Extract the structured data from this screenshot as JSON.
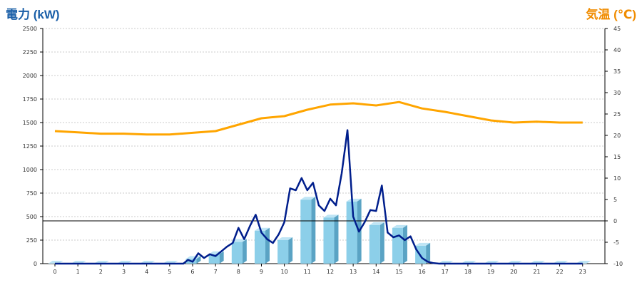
{
  "chart_data": {
    "type": "bar+line",
    "title": "",
    "ylabel_left": "電力 (kW)",
    "ylabel_right": "気温 (℃)",
    "colors": {
      "left_title": "#1a5fa8",
      "right_title": "#f08c00",
      "bar": "#8ccfe9",
      "bar_side": "#5aa3c4",
      "bar_top": "#bfe5f5",
      "power_line": "#001e8c",
      "temp_line": "#ffa500",
      "grid": "#bbbbbb",
      "zero_line": "#000000"
    },
    "x_ticks": [
      "0",
      "1",
      "2",
      "3",
      "4",
      "5",
      "6",
      "7",
      "8",
      "9",
      "10",
      "11",
      "12",
      "13",
      "14",
      "15",
      "16",
      "17",
      "18",
      "19",
      "20",
      "21",
      "22",
      "23"
    ],
    "ylim_left": [
      0,
      2500
    ],
    "y_ticks_left": [
      "0",
      "250",
      "500",
      "750",
      "1000",
      "1250",
      "1500",
      "1750",
      "2000",
      "2250",
      "2500"
    ],
    "ylim_right": [
      -10,
      45
    ],
    "y_ticks_right": [
      "-10",
      "-5",
      "0",
      "5",
      "10",
      "15",
      "20",
      "25",
      "30",
      "35",
      "40",
      "45"
    ],
    "reference_line_right": 0,
    "grid": true,
    "bars": {
      "name": "",
      "categories": [
        0,
        1,
        2,
        3,
        4,
        5,
        6,
        7,
        8,
        9,
        10,
        11,
        12,
        13,
        14,
        15,
        16,
        17,
        18,
        19,
        20,
        21,
        22,
        23
      ],
      "values": [
        0,
        0,
        0,
        0,
        0,
        0,
        50,
        100,
        230,
        350,
        250,
        680,
        490,
        660,
        410,
        380,
        190,
        0,
        0,
        0,
        0,
        0,
        0,
        0
      ]
    },
    "power_line": {
      "name": "",
      "x": [
        0,
        1,
        2,
        3,
        4,
        5,
        5.6,
        5.8,
        6,
        6.25,
        6.5,
        6.75,
        7,
        7.25,
        7.5,
        7.75,
        8,
        8.25,
        8.5,
        8.75,
        9,
        9.25,
        9.5,
        9.75,
        10,
        10.25,
        10.5,
        10.75,
        11,
        11.25,
        11.5,
        11.75,
        12,
        12.25,
        12.5,
        12.75,
        13,
        13.25,
        13.5,
        13.75,
        14,
        14.25,
        14.5,
        14.75,
        15,
        15.25,
        15.5,
        15.75,
        16,
        16.25,
        16.5,
        16.75,
        17,
        18,
        19,
        20,
        21,
        22,
        23
      ],
      "y": [
        0,
        0,
        0,
        0,
        0,
        0,
        0,
        40,
        20,
        110,
        60,
        100,
        80,
        130,
        180,
        220,
        380,
        260,
        400,
        520,
        330,
        260,
        220,
        310,
        440,
        800,
        780,
        910,
        780,
        860,
        620,
        560,
        690,
        620,
        960,
        1420,
        500,
        340,
        440,
        570,
        560,
        830,
        330,
        280,
        300,
        250,
        290,
        150,
        60,
        20,
        5,
        0,
        0,
        0,
        0,
        0,
        0,
        0,
        0
      ]
    },
    "temperature_line": {
      "name": "",
      "x": [
        0,
        1,
        2,
        3,
        4,
        5,
        6,
        7,
        8,
        9,
        10,
        11,
        12,
        13,
        14,
        15,
        16,
        17,
        18,
        19,
        20,
        21,
        22,
        23
      ],
      "y": [
        21,
        20.7,
        20.4,
        20.4,
        20.2,
        20.2,
        20.6,
        21,
        22.5,
        24,
        24.5,
        26,
        27.2,
        27.5,
        27,
        27.8,
        26.3,
        25.5,
        24.5,
        23.5,
        23,
        23.2,
        23,
        23
      ]
    }
  }
}
